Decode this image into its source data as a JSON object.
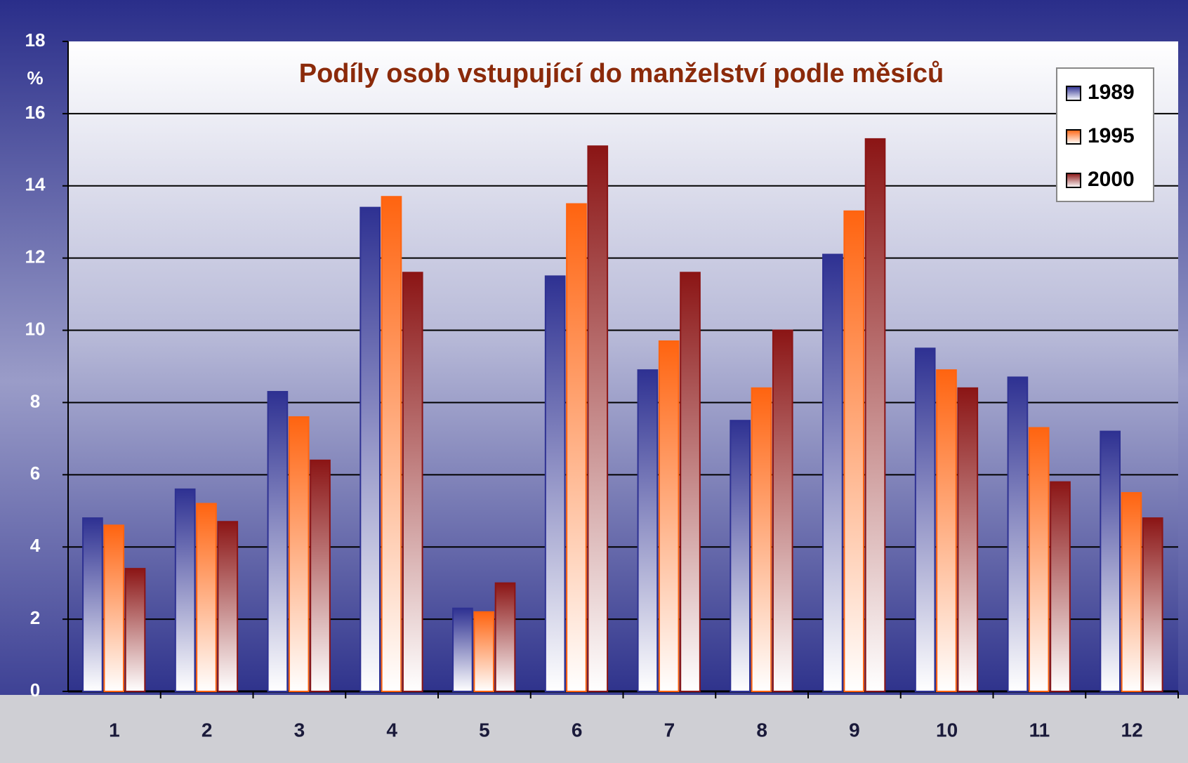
{
  "chart_data": {
    "type": "bar",
    "title": "Podíly osob vstupující do manželství podle měsíců",
    "y_label": "%",
    "categories": [
      "1",
      "2",
      "3",
      "4",
      "5",
      "6",
      "7",
      "8",
      "9",
      "10",
      "11",
      "12"
    ],
    "series": [
      {
        "name": "1989",
        "color": "#2e3192",
        "values": [
          4.8,
          5.6,
          8.3,
          13.4,
          2.3,
          11.5,
          8.9,
          7.5,
          12.1,
          9.5,
          8.7,
          7.2
        ]
      },
      {
        "name": "1995",
        "color": "#ff6410",
        "values": [
          4.6,
          5.2,
          7.6,
          13.7,
          2.2,
          13.5,
          9.7,
          8.4,
          13.3,
          8.9,
          7.3,
          5.5
        ]
      },
      {
        "name": "2000",
        "color": "#8b1515",
        "values": [
          3.4,
          4.7,
          6.4,
          11.6,
          3.0,
          15.1,
          11.6,
          10.0,
          15.3,
          8.4,
          5.8,
          4.8
        ]
      }
    ],
    "ylim": [
      0,
      18
    ],
    "yticks": [
      0,
      2,
      4,
      6,
      8,
      10,
      12,
      14,
      16,
      18
    ],
    "grid": true,
    "legend": "top-right"
  }
}
